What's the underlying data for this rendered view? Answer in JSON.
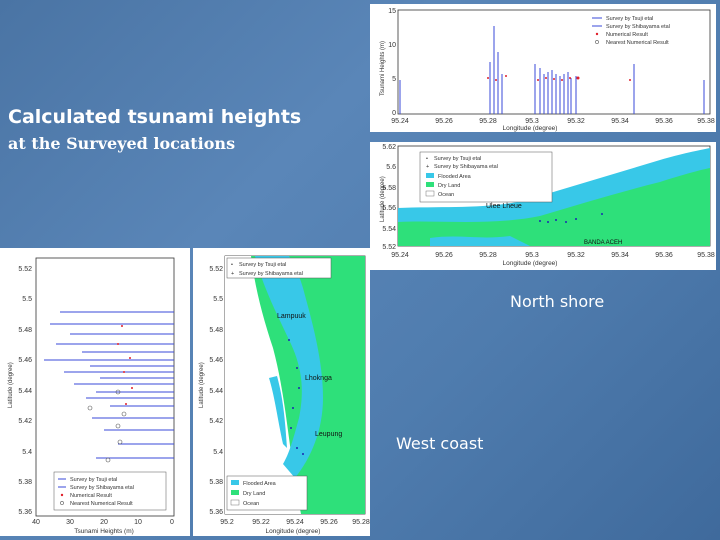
{
  "slide": {
    "title_line1": "Calculated tsunami heights",
    "title_line2": "at the Surveyed locations",
    "label_north": "North shore",
    "label_west": "West coast"
  },
  "north_chart": {
    "ylabel": "Tsunami Heights (m)",
    "xlabel": "Longitude (degree)",
    "yticks": [
      "15",
      "10",
      "5",
      "0"
    ],
    "xticks": [
      "95.24",
      "95.26",
      "95.28",
      "95.3",
      "95.32",
      "95.34",
      "95.36",
      "95.38"
    ],
    "legend": [
      "Survey by Tsuji etal",
      "Survey by Shibayama etal",
      "Numerical Result",
      "Nearest Numerical Result"
    ]
  },
  "north_map": {
    "ylabel": "Latitude (degree)",
    "xlabel": "Longitude (degree)",
    "yticks": [
      "5.62",
      "5.6",
      "5.58",
      "5.56",
      "5.54",
      "5.52"
    ],
    "xticks": [
      "95.24",
      "95.26",
      "95.28",
      "95.3",
      "95.32",
      "95.34",
      "95.36",
      "95.38"
    ],
    "legend": [
      "Survey by Tsuji etal",
      "Survey by Shibayama etal",
      "Flooded Area",
      "Dry Land",
      "Ocean"
    ],
    "places": [
      "Ulee Lheue",
      "BANDA ACEH"
    ]
  },
  "west_chart": {
    "ylabel": "Latitude (degree)",
    "xlabel": "Tsunami Heights (m)",
    "yticks": [
      "5.52",
      "5.5",
      "5.48",
      "5.46",
      "5.44",
      "5.42",
      "5.4",
      "5.38",
      "5.36"
    ],
    "xticks": [
      "40",
      "30",
      "20",
      "10",
      "0"
    ],
    "legend": [
      "Survey by Tsuji etal",
      "Survey by Shibayama etal",
      "Numerical Result",
      "Nearest Numerical Result"
    ]
  },
  "west_map": {
    "ylabel": "Latitude (degree)",
    "xlabel": "Longitude (degree)",
    "yticks": [
      "5.52",
      "5.5",
      "5.48",
      "5.46",
      "5.44",
      "5.42",
      "5.4",
      "5.38",
      "5.36"
    ],
    "xticks": [
      "95.2",
      "95.22",
      "95.24",
      "95.26",
      "95.28"
    ],
    "legend": [
      "Survey by Tsuji etal",
      "Survey by Shibayama etal",
      "Flooded Area",
      "Dry Land",
      "Ocean"
    ],
    "places": [
      "Lampuuk",
      "Lhoknga",
      "Leupung"
    ]
  },
  "colors": {
    "survey_bar": "#3a4ad8",
    "numerical": "#e0202c",
    "flooded": "#38c8e8",
    "dry_land": "#2ee07a",
    "ocean": "#ffffff"
  }
}
